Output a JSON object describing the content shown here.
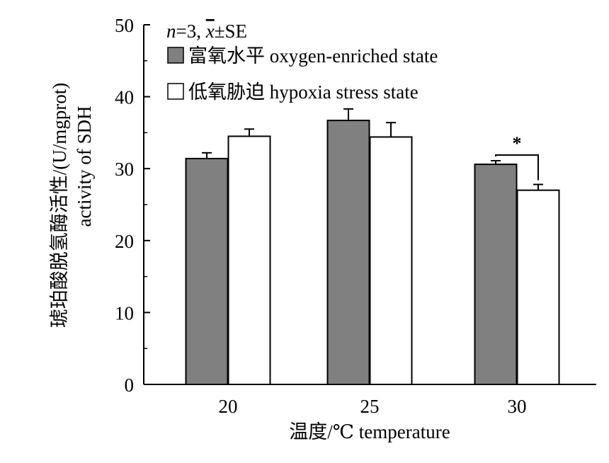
{
  "chart_data": {
    "type": "bar",
    "categories": [
      "20",
      "25",
      "30"
    ],
    "series": [
      {
        "name": "富氧水平 oxygen-enriched state",
        "color": "#808080",
        "values": [
          31.4,
          36.7,
          30.6
        ],
        "errors": [
          0.8,
          1.6,
          0.5
        ]
      },
      {
        "name": "低氧胁迫 hypoxia stress state",
        "color": "#ffffff",
        "values": [
          34.5,
          34.4,
          27.0
        ],
        "errors": [
          1.0,
          2.0,
          0.8
        ]
      }
    ],
    "xlabel": "温度/℃ temperature",
    "ylabel_line1": "琥珀酸脱氢酶活性/(U/mgprot)",
    "ylabel_line2": "activity of SDH",
    "ylim": [
      0,
      50
    ],
    "yticks": [
      "0",
      "10",
      "20",
      "30",
      "40",
      "50"
    ],
    "annotation": {
      "prefix_italic": "n",
      "prefix_rest": "=3, ",
      "xbar": "x",
      "suffix": "±SE"
    },
    "significance": {
      "category": "30",
      "label": "*"
    },
    "legend_position": "top-left",
    "grid": false
  }
}
